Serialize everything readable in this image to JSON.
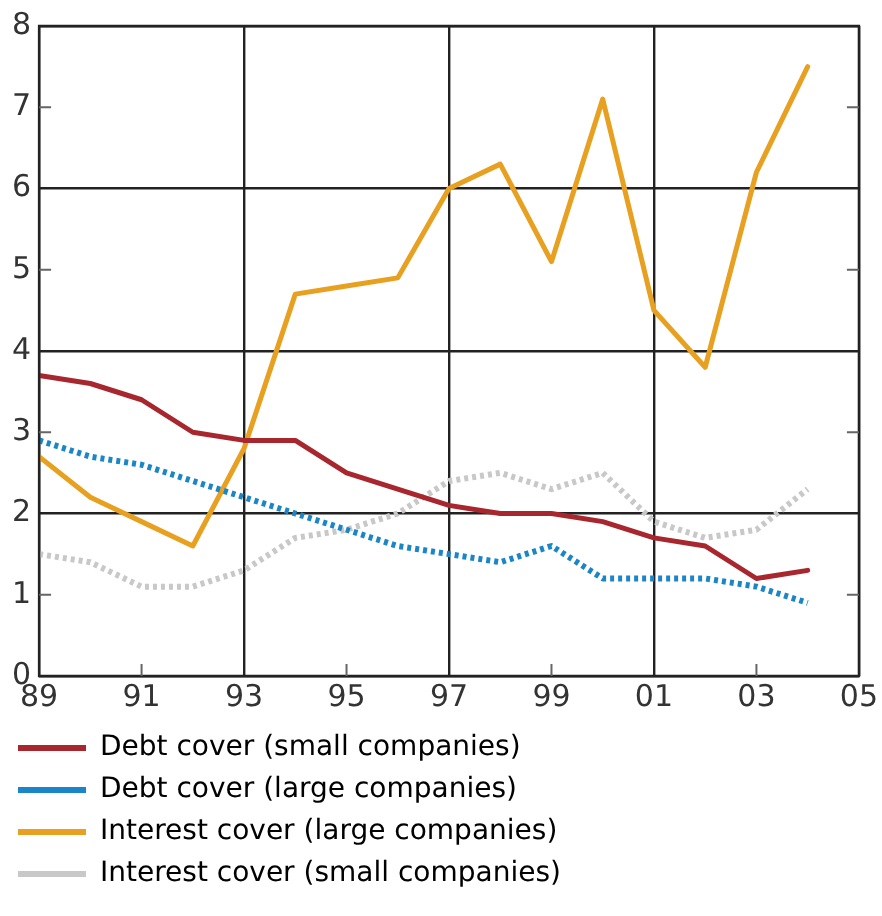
{
  "chart_data": {
    "type": "line",
    "x": [
      1989,
      1990,
      1991,
      1992,
      1993,
      1994,
      1995,
      1996,
      1997,
      1998,
      1999,
      2000,
      2001,
      2002,
      2003,
      2004
    ],
    "series": [
      {
        "name": "Debt cover (small companies)",
        "color": "#a8262e",
        "line_style": "solid",
        "values": [
          3.7,
          3.6,
          3.4,
          3.0,
          2.9,
          2.9,
          2.5,
          2.3,
          2.1,
          2.0,
          2.0,
          1.9,
          1.7,
          1.6,
          1.2,
          1.3
        ]
      },
      {
        "name": "Debt cover (large companies)",
        "color": "#1a86c8",
        "line_style": "dotted",
        "values": [
          2.9,
          2.7,
          2.6,
          2.4,
          2.2,
          2.0,
          1.8,
          1.6,
          1.5,
          1.4,
          1.6,
          1.2,
          1.2,
          1.2,
          1.1,
          0.9
        ]
      },
      {
        "name": "Interest cover (large companies)",
        "color": "#e8a020",
        "line_style": "solid",
        "values": [
          2.7,
          2.2,
          1.9,
          1.6,
          2.8,
          4.7,
          4.8,
          4.9,
          6.0,
          6.3,
          5.1,
          7.1,
          4.5,
          3.8,
          6.2,
          7.5
        ]
      },
      {
        "name": "Interest cover (small companies)",
        "color": "#c8c8c8",
        "line_style": "dotted",
        "values": [
          1.5,
          1.4,
          1.1,
          1.1,
          1.3,
          1.7,
          1.8,
          2.0,
          2.4,
          2.5,
          2.3,
          2.5,
          1.9,
          1.7,
          1.8,
          2.3
        ]
      }
    ],
    "xlim": [
      1989,
      2005
    ],
    "xticks": [
      {
        "value": 1989,
        "label": "89"
      },
      {
        "value": 1991,
        "label": "91"
      },
      {
        "value": 1993,
        "label": "93"
      },
      {
        "value": 1995,
        "label": "95"
      },
      {
        "value": 1997,
        "label": "97"
      },
      {
        "value": 1999,
        "label": "99"
      },
      {
        "value": 2001,
        "label": "01"
      },
      {
        "value": 2003,
        "label": "03"
      },
      {
        "value": 2005,
        "label": "05"
      }
    ],
    "ylim": [
      0,
      8
    ],
    "yticks": [
      0,
      1,
      2,
      3,
      4,
      5,
      6,
      7,
      8
    ],
    "grid": true,
    "legend": "bottom",
    "marker": "none"
  }
}
